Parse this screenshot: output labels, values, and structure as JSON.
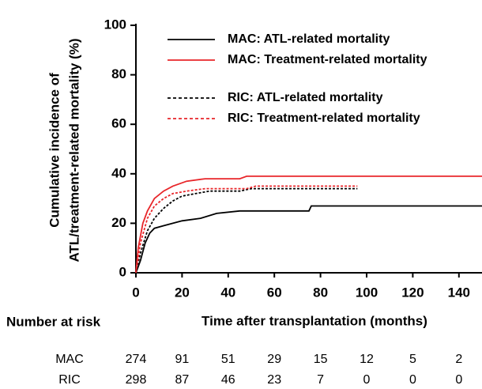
{
  "chart_data": {
    "type": "line",
    "ylabel": [
      "Cumulative incidence of",
      "ATL/treatment-related mortality (%)"
    ],
    "xlabel": "Time after transplantation  (months)",
    "xlim": [
      0,
      150
    ],
    "ylim": [
      0,
      100
    ],
    "xticks": [
      0,
      20,
      40,
      60,
      80,
      100,
      120,
      140
    ],
    "yticks": [
      0,
      20,
      40,
      60,
      80,
      100
    ],
    "grid": false,
    "legend": "top",
    "series": [
      {
        "name": "MAC: ATL-related mortality",
        "color": "#000000",
        "linestyle": "solid",
        "x": [
          0,
          2,
          4,
          6,
          8,
          12,
          16,
          20,
          28,
          35,
          45,
          75,
          76,
          150
        ],
        "values": [
          0,
          5,
          12,
          16,
          18,
          19,
          20,
          21,
          22,
          24,
          25,
          25,
          27,
          27
        ]
      },
      {
        "name": "MAC: Treatment-related mortality",
        "color": "#e8262a",
        "linestyle": "solid",
        "x": [
          0,
          1,
          3,
          5,
          8,
          12,
          16,
          22,
          30,
          45,
          48,
          150
        ],
        "values": [
          0,
          10,
          20,
          25,
          30,
          33,
          35,
          37,
          38,
          38,
          39,
          39
        ]
      },
      {
        "name": "RIC: ATL-related mortality",
        "color": "#000000",
        "linestyle": "dashed",
        "x": [
          0,
          2,
          5,
          8,
          12,
          16,
          20,
          26,
          32,
          45,
          50,
          96
        ],
        "values": [
          0,
          8,
          17,
          22,
          26,
          29,
          31,
          32,
          33,
          33,
          34,
          34
        ]
      },
      {
        "name": "RIC: Treatment-related mortality",
        "color": "#e8262a",
        "linestyle": "dashed",
        "x": [
          0,
          2,
          5,
          8,
          12,
          16,
          22,
          30,
          48,
          52,
          96
        ],
        "values": [
          0,
          12,
          22,
          27,
          30,
          32,
          33,
          34,
          34,
          35,
          35
        ]
      }
    ],
    "risk_table": {
      "title": "Number at risk",
      "rows": [
        {
          "label": "MAC",
          "values": [
            274,
            91,
            51,
            29,
            15,
            12,
            5,
            2
          ]
        },
        {
          "label": "RIC",
          "values": [
            298,
            87,
            46,
            23,
            7,
            0,
            0,
            0
          ]
        }
      ]
    }
  }
}
